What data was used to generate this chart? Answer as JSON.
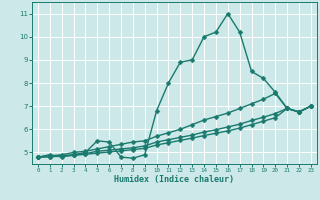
{
  "xlabel": "Humidex (Indice chaleur)",
  "xlim": [
    -0.5,
    23.5
  ],
  "ylim": [
    4.5,
    11.5
  ],
  "yticks": [
    5,
    6,
    7,
    8,
    9,
    10,
    11
  ],
  "xticks": [
    0,
    1,
    2,
    3,
    4,
    5,
    6,
    7,
    8,
    9,
    10,
    11,
    12,
    13,
    14,
    15,
    16,
    17,
    18,
    19,
    20,
    21,
    22,
    23
  ],
  "bg_color": "#cce8e8",
  "grid_color": "#ffffff",
  "line_color": "#1a7a6e",
  "line_width": 1.0,
  "marker_size": 2.5,
  "series": [
    {
      "x": [
        0,
        1,
        2,
        3,
        4,
        5,
        6,
        7,
        8,
        9,
        10,
        11,
        12,
        13,
        14,
        15,
        16,
        17,
        18,
        19,
        20,
        21,
        22,
        23
      ],
      "y": [
        4.8,
        4.9,
        4.8,
        4.9,
        5.0,
        5.5,
        5.45,
        4.8,
        4.75,
        4.9,
        6.8,
        8.0,
        8.9,
        9.0,
        10.0,
        10.2,
        11.0,
        10.2,
        8.5,
        8.2,
        7.6,
        6.9,
        6.75,
        7.0
      ]
    },
    {
      "x": [
        0,
        1,
        2,
        3,
        4,
        5,
        6,
        7,
        8,
        9,
        10,
        11,
        12,
        13,
        14,
        15,
        16,
        17,
        18,
        19,
        20,
        21,
        22,
        23
      ],
      "y": [
        4.8,
        4.85,
        4.9,
        5.0,
        5.05,
        5.15,
        5.25,
        5.35,
        5.45,
        5.5,
        5.7,
        5.85,
        6.0,
        6.2,
        6.4,
        6.55,
        6.7,
        6.9,
        7.1,
        7.3,
        7.55,
        6.9,
        6.75,
        7.0
      ]
    },
    {
      "x": [
        0,
        1,
        2,
        3,
        4,
        5,
        6,
        7,
        8,
        9,
        10,
        11,
        12,
        13,
        14,
        15,
        16,
        17,
        18,
        19,
        20,
        21,
        22,
        23
      ],
      "y": [
        4.8,
        4.82,
        4.86,
        4.9,
        4.95,
        5.05,
        5.1,
        5.15,
        5.2,
        5.28,
        5.45,
        5.55,
        5.65,
        5.75,
        5.88,
        5.98,
        6.1,
        6.22,
        6.38,
        6.52,
        6.68,
        6.9,
        6.75,
        7.0
      ]
    },
    {
      "x": [
        0,
        1,
        2,
        3,
        4,
        5,
        6,
        7,
        8,
        9,
        10,
        11,
        12,
        13,
        14,
        15,
        16,
        17,
        18,
        19,
        20,
        21,
        22,
        23
      ],
      "y": [
        4.8,
        4.81,
        4.84,
        4.87,
        4.92,
        4.97,
        5.02,
        5.07,
        5.12,
        5.18,
        5.32,
        5.42,
        5.52,
        5.62,
        5.73,
        5.83,
        5.93,
        6.05,
        6.2,
        6.35,
        6.5,
        6.9,
        6.75,
        7.0
      ]
    }
  ]
}
